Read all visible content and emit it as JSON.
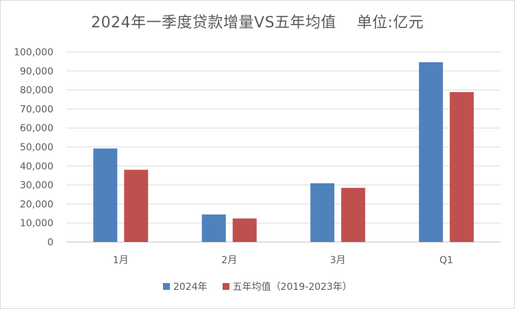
{
  "chart_data": {
    "type": "bar",
    "title": "2024年一季度贷款增量VS五年均值    单位:亿元",
    "categories": [
      "1月",
      "2月",
      "3月",
      "Q1"
    ],
    "series": [
      {
        "name": "2024年",
        "color": "#4f81bd",
        "values": [
          49200,
          14500,
          30900,
          94600
        ]
      },
      {
        "name": "五年均值（2019-2023年）",
        "color": "#c0504d",
        "values": [
          38000,
          12400,
          28500,
          78900
        ]
      }
    ],
    "ylim": [
      0,
      100000
    ],
    "yticks": [
      "0",
      "10,000",
      "20,000",
      "30,000",
      "40,000",
      "50,000",
      "60,000",
      "70,000",
      "80,000",
      "90,000",
      "100,000"
    ],
    "grid": true,
    "legend_position": "bottom",
    "xlabel": "",
    "ylabel": ""
  }
}
